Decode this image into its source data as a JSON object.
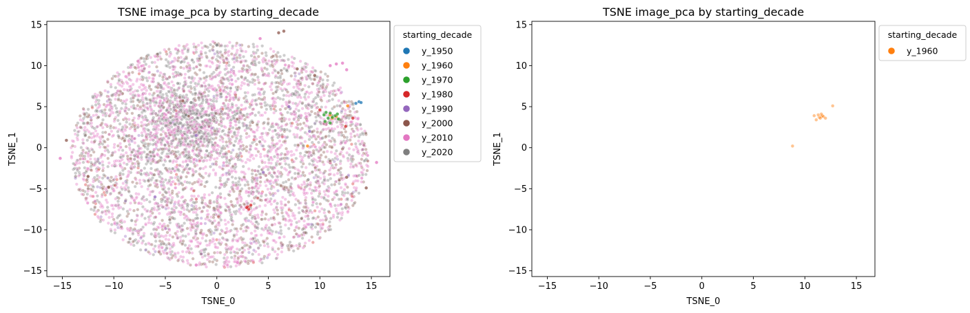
{
  "chart_data": [
    {
      "type": "scatter",
      "title": "TSNE image_pca by starting_decade",
      "xlabel": "TSNE_0",
      "ylabel": "TSNE_1",
      "xlim": [
        -16.5,
        16.8
      ],
      "ylim": [
        -15.7,
        15.4
      ],
      "xticks": [
        -15,
        -10,
        -5,
        0,
        5,
        10,
        15
      ],
      "yticks": [
        -15,
        -10,
        -5,
        0,
        5,
        10,
        15
      ],
      "xtick_labels": [
        "−15",
        "−10",
        "−5",
        "0",
        "5",
        "10",
        "15"
      ],
      "ytick_labels": [
        "−15",
        "−10",
        "−5",
        "0",
        "5",
        "10",
        "15"
      ],
      "legend": {
        "title": "starting_decade",
        "placement": "outside-right-top",
        "entries": [
          {
            "name": "y_1950",
            "color": "#1f77b4"
          },
          {
            "name": "y_1960",
            "color": "#ff7f0e"
          },
          {
            "name": "y_1970",
            "color": "#2ca02c"
          },
          {
            "name": "y_1980",
            "color": "#d62728"
          },
          {
            "name": "y_1990",
            "color": "#9467bd"
          },
          {
            "name": "y_2000",
            "color": "#8c564b"
          },
          {
            "name": "y_2010",
            "color": "#e377c2"
          },
          {
            "name": "y_2020",
            "color": "#7f7f7f"
          }
        ]
      },
      "series": [
        {
          "name": "y_1950",
          "color": "#1f77b4",
          "points": [
            [
              13.8,
              5.6
            ],
            [
              13.5,
              5.4
            ],
            [
              14.0,
              5.5
            ]
          ]
        },
        {
          "name": "y_1960",
          "color": "#ff7f0e",
          "points": [
            [
              11.6,
              3.8
            ],
            [
              11.2,
              3.6
            ],
            [
              12.7,
              5.1
            ],
            [
              8.8,
              0.2
            ],
            [
              11.0,
              4.0
            ]
          ]
        },
        {
          "name": "y_1970",
          "color": "#2ca02c",
          "points": [
            [
              10.6,
              4.3
            ],
            [
              11.0,
              4.2
            ],
            [
              11.2,
              3.7
            ],
            [
              11.5,
              3.9
            ],
            [
              10.8,
              3.6
            ],
            [
              10.4,
              4.0
            ],
            [
              11.7,
              4.1
            ],
            [
              10.5,
              3.2
            ],
            [
              11.0,
              3.0
            ],
            [
              11.8,
              3.5
            ]
          ]
        },
        {
          "name": "y_1980",
          "color": "#d62728",
          "points": [
            [
              3.0,
              -7.2
            ],
            [
              3.1,
              -7.5
            ],
            [
              2.9,
              -7.3
            ],
            [
              3.3,
              -7.0
            ],
            [
              12.5,
              2.6
            ],
            [
              10.0,
              4.6
            ],
            [
              13.2,
              3.6
            ]
          ]
        },
        {
          "name": "y_1990",
          "color": "#9467bd",
          "points": [
            [
              -2.0,
              1.5
            ],
            [
              4.5,
              -3.0
            ],
            [
              7.0,
              5.0
            ],
            [
              -6.0,
              -6.0
            ],
            [
              9.0,
              2.0
            ]
          ]
        },
        {
          "name": "y_2000",
          "color": "#8c564b",
          "points": [
            [
              6.5,
              14.2
            ],
            [
              6.0,
              14.0
            ],
            [
              -3.3,
              5.7
            ],
            [
              7.8,
              9.6
            ],
            [
              -10.5,
              -4.8
            ],
            [
              -12.5,
              -3.5
            ],
            [
              12.6,
              -3.6
            ],
            [
              14.5,
              -4.9
            ],
            [
              -14.6,
              0.9
            ],
            [
              9.5,
              8.8
            ]
          ]
        },
        {
          "name": "y_2010",
          "color": "#e377c2",
          "points": [
            [
              11.6,
              10.2
            ],
            [
              12.2,
              10.3
            ],
            [
              11.0,
              10.0
            ],
            [
              12.6,
              9.5
            ],
            [
              -15.2,
              -1.3
            ],
            [
              15.5,
              -1.8
            ],
            [
              -2.0,
              -14.3
            ],
            [
              2.0,
              -14.0
            ],
            [
              4.2,
              13.3
            ]
          ]
        },
        {
          "name": "y_2020",
          "color": "#7f7f7f",
          "points": [
            [
              0.0,
              12.5
            ],
            [
              -3.0,
              4.0
            ],
            [
              -1.5,
              2.5
            ],
            [
              -4.5,
              3.0
            ],
            [
              -2.5,
              5.5
            ]
          ]
        }
      ]
    },
    {
      "type": "scatter",
      "title": "TSNE image_pca by starting_decade",
      "xlabel": "TSNE_0",
      "ylabel": "TSNE_1",
      "xlim": [
        -16.5,
        16.8
      ],
      "ylim": [
        -15.7,
        15.4
      ],
      "xticks": [
        -15,
        -10,
        -5,
        0,
        5,
        10,
        15
      ],
      "yticks": [
        -15,
        -10,
        -5,
        0,
        5,
        10,
        15
      ],
      "xtick_labels": [
        "−15",
        "−10",
        "−5",
        "0",
        "5",
        "10",
        "15"
      ],
      "ytick_labels": [
        "−15",
        "−10",
        "−5",
        "0",
        "5",
        "10",
        "15"
      ],
      "legend": {
        "title": "starting_decade",
        "placement": "outside-right-top",
        "entries": [
          {
            "name": "y_1960",
            "color": "#ff7f0e"
          }
        ]
      },
      "series": [
        {
          "name": "y_1960",
          "color": "#ff7f0e",
          "points": [
            [
              11.6,
              3.8
            ],
            [
              11.4,
              3.7
            ],
            [
              11.7,
              3.9
            ],
            [
              11.5,
              3.6
            ],
            [
              11.8,
              3.8
            ],
            [
              11.1,
              3.4
            ],
            [
              12.0,
              3.6
            ],
            [
              10.9,
              3.9
            ],
            [
              11.6,
              4.1
            ],
            [
              12.7,
              5.1
            ],
            [
              8.8,
              0.2
            ],
            [
              11.3,
              4.0
            ]
          ]
        }
      ]
    }
  ]
}
